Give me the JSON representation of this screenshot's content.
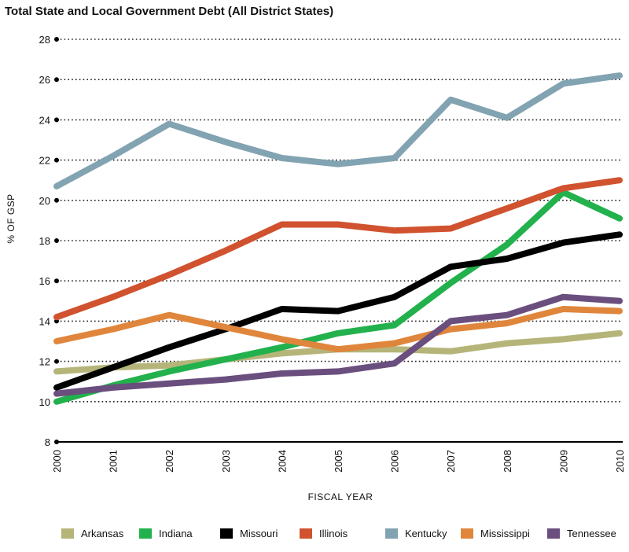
{
  "chart_data": {
    "type": "line",
    "title": "Total State and Local Government Debt (All District States)",
    "xlabel": "FISCAL YEAR",
    "ylabel": "% OF GSP",
    "x": [
      "2000",
      "2001",
      "2002",
      "2003",
      "2004",
      "2005",
      "2006",
      "2007",
      "2008",
      "2009",
      "2010"
    ],
    "ylim": [
      8,
      28
    ],
    "yticks": [
      "8",
      "10",
      "12",
      "14",
      "16",
      "18",
      "20",
      "22",
      "24",
      "26",
      "28"
    ],
    "grid": true,
    "legend_position": "bottom",
    "series": [
      {
        "name": "Arkansas",
        "color": "#b5b57a",
        "values": [
          11.5,
          11.7,
          11.8,
          12.1,
          12.4,
          12.6,
          12.6,
          12.5,
          12.9,
          13.1,
          13.4
        ]
      },
      {
        "name": "Indiana",
        "color": "#22b14c",
        "values": [
          10.0,
          10.8,
          11.5,
          12.1,
          12.7,
          13.4,
          13.8,
          15.9,
          17.8,
          20.4,
          19.1
        ]
      },
      {
        "name": "Missouri",
        "color": "#000000",
        "values": [
          10.7,
          11.7,
          12.7,
          13.6,
          14.6,
          14.5,
          15.2,
          16.7,
          17.1,
          17.9,
          18.3
        ]
      },
      {
        "name": "Illinois",
        "color": "#d0522f",
        "values": [
          14.2,
          15.2,
          16.3,
          17.5,
          18.8,
          18.8,
          18.5,
          18.6,
          19.6,
          20.6,
          21.0
        ]
      },
      {
        "name": "Kentucky",
        "color": "#82a3b1",
        "values": [
          20.7,
          22.2,
          23.8,
          22.9,
          22.1,
          21.8,
          22.1,
          25.0,
          24.1,
          25.8,
          26.2
        ]
      },
      {
        "name": "Mississippi",
        "color": "#e0863c",
        "values": [
          13.0,
          13.6,
          14.3,
          13.7,
          13.1,
          12.6,
          12.9,
          13.6,
          13.9,
          14.6,
          14.5
        ]
      },
      {
        "name": "Tennessee",
        "color": "#6a4e7e",
        "values": [
          10.4,
          10.7,
          10.9,
          11.1,
          11.4,
          11.5,
          11.9,
          14.0,
          14.3,
          15.2,
          15.0
        ]
      }
    ]
  }
}
